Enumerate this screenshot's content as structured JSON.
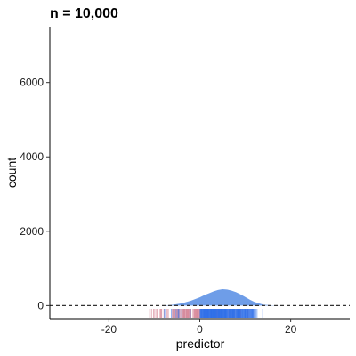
{
  "chart_data": {
    "type": "area",
    "title": "n = 10,000",
    "xlabel": "predictor",
    "ylabel": "count",
    "xlim": [
      -33,
      33
    ],
    "ylim": [
      -350,
      7500
    ],
    "x_ticks": [
      -20,
      0,
      20
    ],
    "y_ticks": [
      0,
      2000,
      4000,
      6000
    ],
    "reference_line": {
      "y": 0,
      "style": "dashed"
    },
    "grid": false,
    "series": [
      {
        "x": [
          -8,
          -6,
          -4,
          -2,
          0,
          1,
          2,
          3,
          4,
          5,
          6,
          7,
          8,
          9,
          10,
          11,
          12,
          13,
          14,
          16,
          18
        ],
        "values": [
          0,
          20,
          60,
          130,
          220,
          280,
          330,
          380,
          420,
          440,
          430,
          400,
          360,
          300,
          230,
          160,
          100,
          60,
          25,
          5,
          0
        ],
        "color": "#6e9de8"
      }
    ],
    "rug": {
      "negative_color": "#d98c9c",
      "positive_color": "#2f6fe8",
      "x_range": [
        -14,
        17
      ]
    }
  }
}
